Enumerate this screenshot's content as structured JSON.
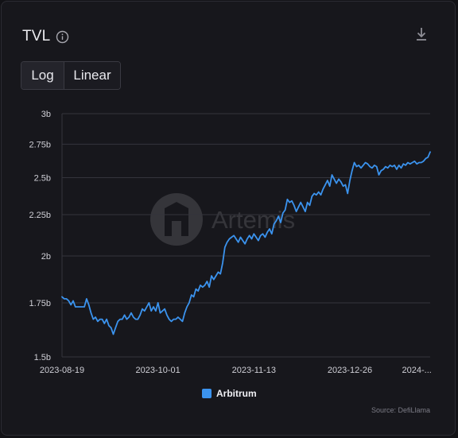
{
  "header": {
    "title": "TVL",
    "info_icon": "info-icon",
    "download_icon": "download-icon"
  },
  "scale_toggle": {
    "options": [
      "Log",
      "Linear"
    ],
    "selected": "Log"
  },
  "watermark": "Artemis",
  "source_text": "Source: DefiLlama",
  "colors": {
    "background": "#17171c",
    "series": "#3b93ee",
    "grid": "#34343c",
    "text": "#e6e6ea"
  },
  "chart_data": {
    "type": "line",
    "scale": "log",
    "grid": true,
    "legend_position": "bottom-center",
    "y_ticks": [
      {
        "value": 1.5,
        "label": "1.5b"
      },
      {
        "value": 1.75,
        "label": "1.75b"
      },
      {
        "value": 2.0,
        "label": "2b"
      },
      {
        "value": 2.25,
        "label": "2.25b"
      },
      {
        "value": 2.5,
        "label": "2.5b"
      },
      {
        "value": 2.75,
        "label": "2.75b"
      },
      {
        "value": 3.0,
        "label": "3b"
      }
    ],
    "ylim": [
      1.5,
      3.0
    ],
    "x_start": "2023-08-19",
    "x_end": "2024-01-31",
    "x_ticks": [
      {
        "date": "2023-08-19",
        "label": "2023-08-19"
      },
      {
        "date": "2023-10-01",
        "label": "2023-10-01"
      },
      {
        "date": "2023-11-13",
        "label": "2023-11-13"
      },
      {
        "date": "2023-12-26",
        "label": "2023-12-26"
      },
      {
        "date": "2024-01-25",
        "label": "2024-..."
      }
    ],
    "series": [
      {
        "name": "Arbitrum",
        "unit": "b",
        "points": [
          [
            "2023-08-19",
            1.78
          ],
          [
            "2023-08-20",
            1.77
          ],
          [
            "2023-08-21",
            1.77
          ],
          [
            "2023-08-22",
            1.76
          ],
          [
            "2023-08-23",
            1.74
          ],
          [
            "2023-08-24",
            1.76
          ],
          [
            "2023-08-25",
            1.73
          ],
          [
            "2023-08-26",
            1.73
          ],
          [
            "2023-08-27",
            1.73
          ],
          [
            "2023-08-28",
            1.73
          ],
          [
            "2023-08-29",
            1.73
          ],
          [
            "2023-08-30",
            1.77
          ],
          [
            "2023-08-31",
            1.74
          ],
          [
            "2023-09-01",
            1.7
          ],
          [
            "2023-09-02",
            1.67
          ],
          [
            "2023-09-03",
            1.68
          ],
          [
            "2023-09-04",
            1.66
          ],
          [
            "2023-09-05",
            1.67
          ],
          [
            "2023-09-06",
            1.67
          ],
          [
            "2023-09-07",
            1.65
          ],
          [
            "2023-09-08",
            1.67
          ],
          [
            "2023-09-09",
            1.64
          ],
          [
            "2023-09-10",
            1.63
          ],
          [
            "2023-09-11",
            1.6
          ],
          [
            "2023-09-12",
            1.63
          ],
          [
            "2023-09-13",
            1.66
          ],
          [
            "2023-09-14",
            1.67
          ],
          [
            "2023-09-15",
            1.67
          ],
          [
            "2023-09-16",
            1.69
          ],
          [
            "2023-09-17",
            1.67
          ],
          [
            "2023-09-18",
            1.68
          ],
          [
            "2023-09-19",
            1.7
          ],
          [
            "2023-09-20",
            1.68
          ],
          [
            "2023-09-21",
            1.67
          ],
          [
            "2023-09-22",
            1.67
          ],
          [
            "2023-09-23",
            1.69
          ],
          [
            "2023-09-24",
            1.72
          ],
          [
            "2023-09-25",
            1.71
          ],
          [
            "2023-09-26",
            1.73
          ],
          [
            "2023-09-27",
            1.75
          ],
          [
            "2023-09-28",
            1.71
          ],
          [
            "2023-09-29",
            1.73
          ],
          [
            "2023-09-30",
            1.71
          ],
          [
            "2023-10-01",
            1.75
          ],
          [
            "2023-10-02",
            1.7
          ],
          [
            "2023-10-03",
            1.71
          ],
          [
            "2023-10-04",
            1.72
          ],
          [
            "2023-10-05",
            1.69
          ],
          [
            "2023-10-06",
            1.67
          ],
          [
            "2023-10-07",
            1.66
          ],
          [
            "2023-10-08",
            1.67
          ],
          [
            "2023-10-09",
            1.67
          ],
          [
            "2023-10-10",
            1.68
          ],
          [
            "2023-10-11",
            1.67
          ],
          [
            "2023-10-12",
            1.66
          ],
          [
            "2023-10-13",
            1.7
          ],
          [
            "2023-10-14",
            1.73
          ],
          [
            "2023-10-15",
            1.75
          ],
          [
            "2023-10-16",
            1.79
          ],
          [
            "2023-10-17",
            1.78
          ],
          [
            "2023-10-18",
            1.82
          ],
          [
            "2023-10-19",
            1.81
          ],
          [
            "2023-10-20",
            1.84
          ],
          [
            "2023-10-21",
            1.83
          ],
          [
            "2023-10-22",
            1.84
          ],
          [
            "2023-10-23",
            1.86
          ],
          [
            "2023-10-24",
            1.83
          ],
          [
            "2023-10-25",
            1.89
          ],
          [
            "2023-10-26",
            1.87
          ],
          [
            "2023-10-27",
            1.89
          ],
          [
            "2023-10-28",
            1.91
          ],
          [
            "2023-10-29",
            1.9
          ],
          [
            "2023-10-30",
            1.96
          ],
          [
            "2023-10-31",
            2.05
          ],
          [
            "2023-11-01",
            2.08
          ],
          [
            "2023-11-02",
            2.1
          ],
          [
            "2023-11-03",
            2.11
          ],
          [
            "2023-11-04",
            2.12
          ],
          [
            "2023-11-05",
            2.1
          ],
          [
            "2023-11-06",
            2.08
          ],
          [
            "2023-11-07",
            2.11
          ],
          [
            "2023-11-08",
            2.09
          ],
          [
            "2023-11-09",
            2.07
          ],
          [
            "2023-11-10",
            2.1
          ],
          [
            "2023-11-11",
            2.12
          ],
          [
            "2023-11-12",
            2.1
          ],
          [
            "2023-11-13",
            2.13
          ],
          [
            "2023-11-14",
            2.11
          ],
          [
            "2023-11-15",
            2.09
          ],
          [
            "2023-11-16",
            2.12
          ],
          [
            "2023-11-17",
            2.13
          ],
          [
            "2023-11-18",
            2.11
          ],
          [
            "2023-11-19",
            2.14
          ],
          [
            "2023-11-20",
            2.16
          ],
          [
            "2023-11-21",
            2.13
          ],
          [
            "2023-11-22",
            2.19
          ],
          [
            "2023-11-23",
            2.21
          ],
          [
            "2023-11-24",
            2.24
          ],
          [
            "2023-11-25",
            2.2
          ],
          [
            "2023-11-26",
            2.26
          ],
          [
            "2023-11-27",
            2.28
          ],
          [
            "2023-11-28",
            2.35
          ],
          [
            "2023-11-29",
            2.33
          ],
          [
            "2023-11-30",
            2.34
          ],
          [
            "2023-12-01",
            2.31
          ],
          [
            "2023-12-02",
            2.27
          ],
          [
            "2023-12-03",
            2.3
          ],
          [
            "2023-12-04",
            2.33
          ],
          [
            "2023-12-05",
            2.3
          ],
          [
            "2023-12-06",
            2.27
          ],
          [
            "2023-12-07",
            2.33
          ],
          [
            "2023-12-08",
            2.31
          ],
          [
            "2023-12-09",
            2.37
          ],
          [
            "2023-12-10",
            2.39
          ],
          [
            "2023-12-11",
            2.38
          ],
          [
            "2023-12-12",
            2.4
          ],
          [
            "2023-12-13",
            2.38
          ],
          [
            "2023-12-14",
            2.42
          ],
          [
            "2023-12-15",
            2.45
          ],
          [
            "2023-12-16",
            2.48
          ],
          [
            "2023-12-17",
            2.44
          ],
          [
            "2023-12-18",
            2.52
          ],
          [
            "2023-12-19",
            2.49
          ],
          [
            "2023-12-20",
            2.46
          ],
          [
            "2023-12-21",
            2.49
          ],
          [
            "2023-12-22",
            2.47
          ],
          [
            "2023-12-23",
            2.44
          ],
          [
            "2023-12-24",
            2.45
          ],
          [
            "2023-12-25",
            2.39
          ],
          [
            "2023-12-26",
            2.48
          ],
          [
            "2023-12-27",
            2.55
          ],
          [
            "2023-12-28",
            2.61
          ],
          [
            "2023-12-29",
            2.58
          ],
          [
            "2023-12-30",
            2.59
          ],
          [
            "2023-12-31",
            2.57
          ],
          [
            "2024-01-01",
            2.59
          ],
          [
            "2024-01-02",
            2.61
          ],
          [
            "2024-01-03",
            2.6
          ],
          [
            "2024-01-04",
            2.58
          ],
          [
            "2024-01-05",
            2.57
          ],
          [
            "2024-01-06",
            2.59
          ],
          [
            "2024-01-07",
            2.58
          ],
          [
            "2024-01-08",
            2.52
          ],
          [
            "2024-01-09",
            2.55
          ],
          [
            "2024-01-10",
            2.56
          ],
          [
            "2024-01-11",
            2.58
          ],
          [
            "2024-01-12",
            2.57
          ],
          [
            "2024-01-13",
            2.59
          ],
          [
            "2024-01-14",
            2.58
          ],
          [
            "2024-01-15",
            2.59
          ],
          [
            "2024-01-16",
            2.56
          ],
          [
            "2024-01-17",
            2.59
          ],
          [
            "2024-01-18",
            2.57
          ],
          [
            "2024-01-19",
            2.6
          ],
          [
            "2024-01-20",
            2.59
          ],
          [
            "2024-01-21",
            2.61
          ],
          [
            "2024-01-22",
            2.6
          ],
          [
            "2024-01-23",
            2.61
          ],
          [
            "2024-01-24",
            2.62
          ],
          [
            "2024-01-25",
            2.6
          ],
          [
            "2024-01-26",
            2.61
          ],
          [
            "2024-01-27",
            2.61
          ],
          [
            "2024-01-28",
            2.62
          ],
          [
            "2024-01-29",
            2.64
          ],
          [
            "2024-01-30",
            2.65
          ],
          [
            "2024-01-31",
            2.69
          ]
        ]
      }
    ]
  }
}
